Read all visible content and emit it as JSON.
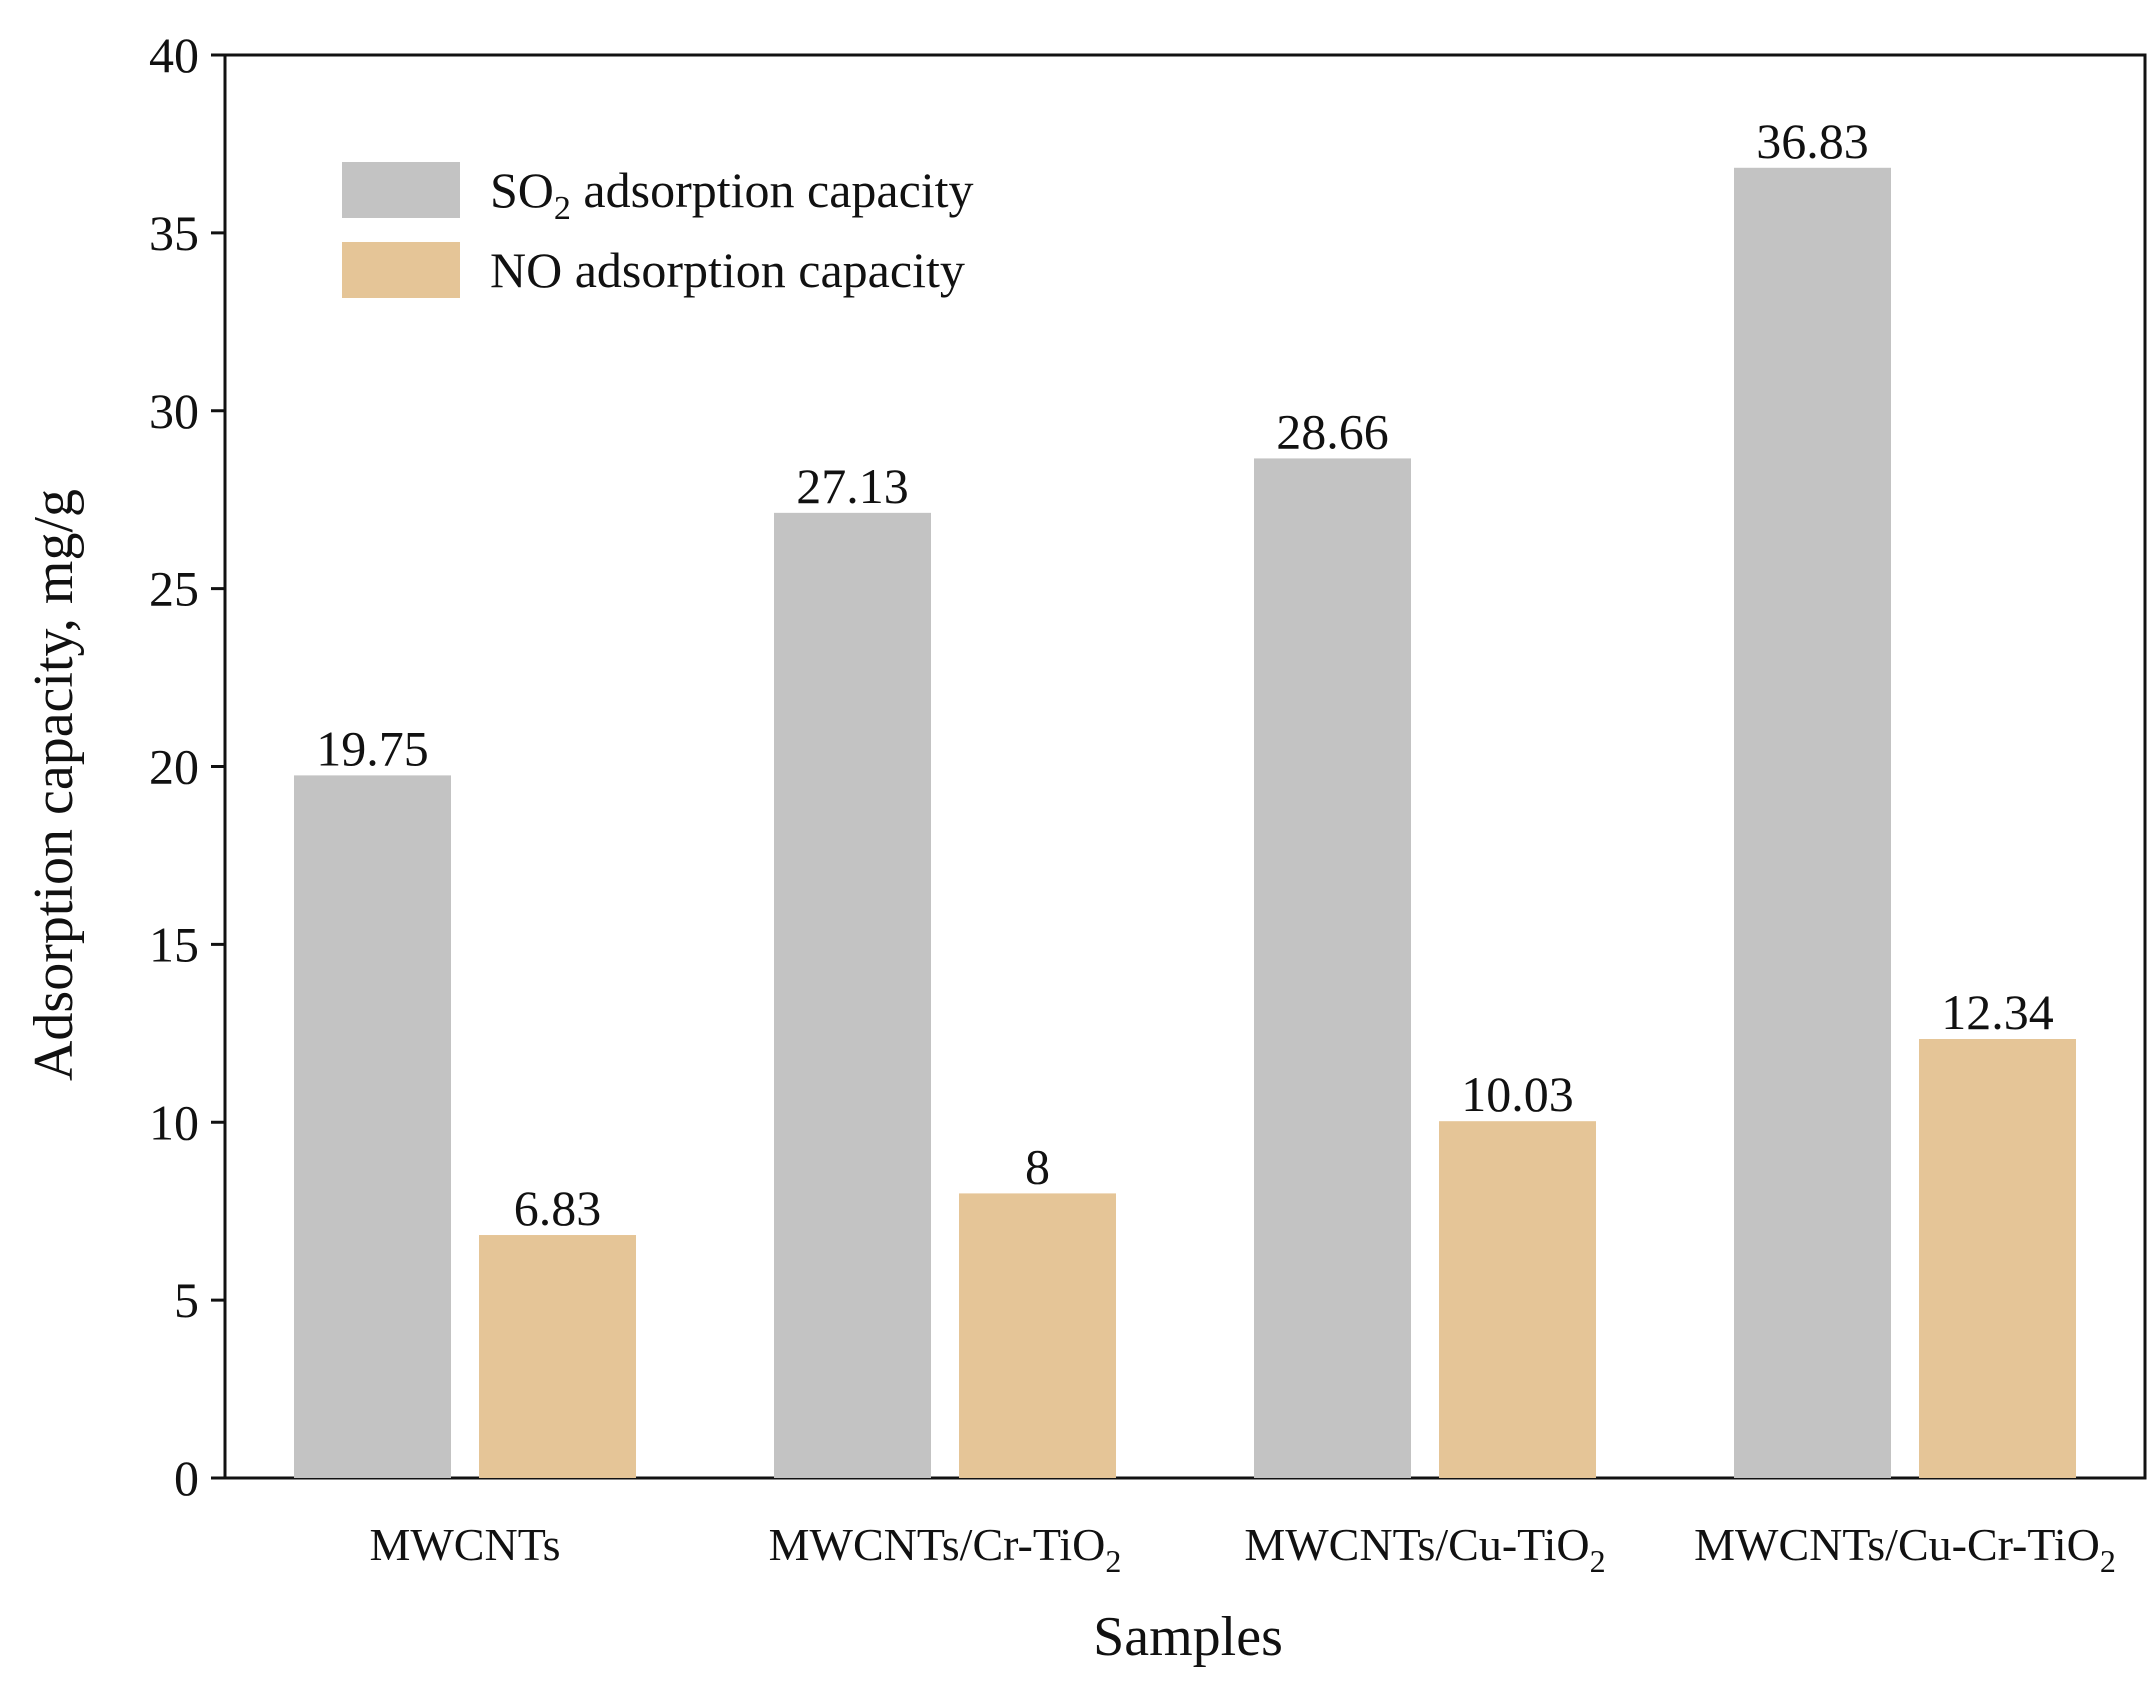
{
  "chart_data": {
    "type": "bar",
    "title": "",
    "xlabel": "Samples",
    "ylabel": "Adsorption capacity, mg/g",
    "ylim": [
      0,
      40
    ],
    "yticks": [
      0,
      5,
      10,
      15,
      20,
      25,
      30,
      35,
      40
    ],
    "categories": [
      {
        "label": "MWCNTs",
        "base": "MWCNTs",
        "sub": ""
      },
      {
        "label": "MWCNTs/Cr-TiO2",
        "base": "MWCNTs/Cr-TiO",
        "sub": "2"
      },
      {
        "label": "MWCNTs/Cu-TiO2",
        "base": "MWCNTs/Cu-TiO",
        "sub": "2"
      },
      {
        "label": "MWCNTs/Cu-Cr-TiO2",
        "base": "MWCNTs/Cu-Cr-TiO",
        "sub": "2"
      }
    ],
    "series": [
      {
        "name": "SO2 adsorption capacity",
        "legend_base": "SO",
        "legend_sub": "2",
        "legend_rest": " adsorption capacity",
        "color": "#c3c3c3",
        "values": [
          19.75,
          27.13,
          28.66,
          36.83
        ],
        "labels": [
          "19.75",
          "27.13",
          "28.66",
          "36.83"
        ]
      },
      {
        "name": "NO adsorption capacity",
        "legend_base": "NO adsorption capacity",
        "legend_sub": "",
        "legend_rest": "",
        "color": "#e5c597",
        "values": [
          6.83,
          8,
          10.03,
          12.34
        ],
        "labels": [
          "6.83",
          "8",
          "10.03",
          "12.34"
        ]
      }
    ],
    "legend_position": "top-left",
    "grid": false
  }
}
